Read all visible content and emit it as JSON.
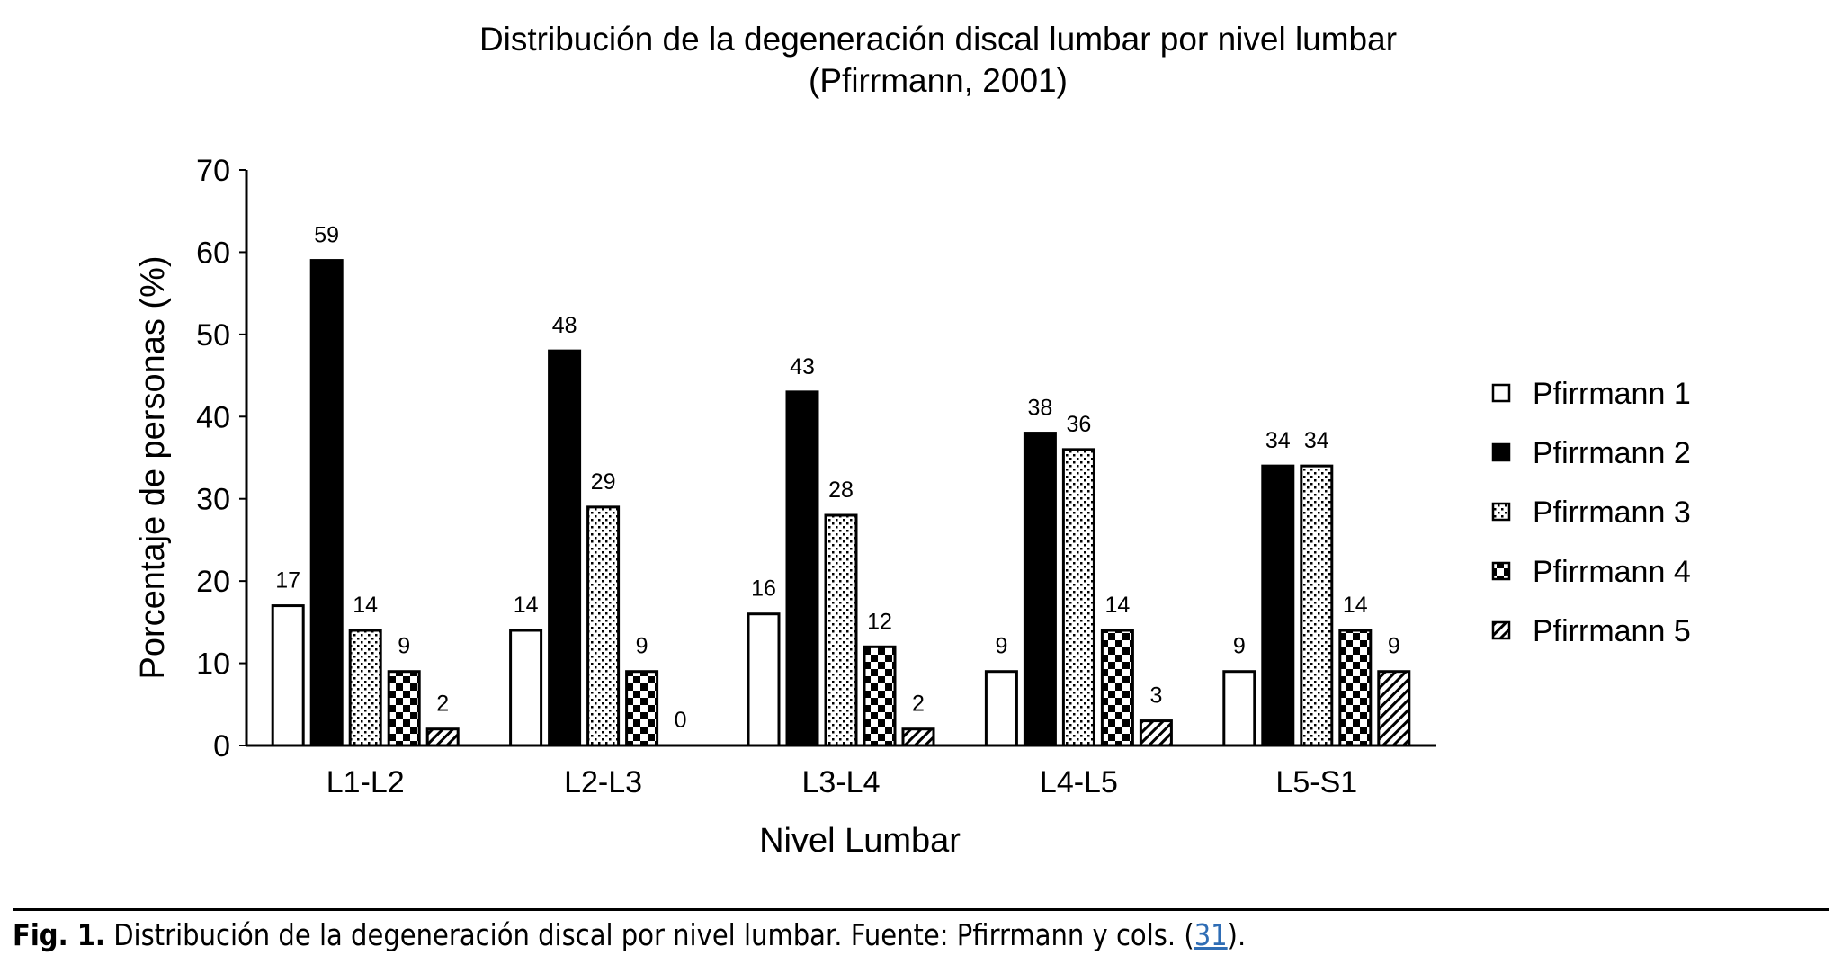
{
  "chart_data": {
    "type": "bar",
    "title": "Distribución de la degeneración discal lumbar por nivel lumbar",
    "subtitle": "(Pfirrmann, 2001)",
    "xlabel": "Nivel Lumbar",
    "ylabel": "Porcentaje de personas (%)",
    "ylim": [
      0,
      70
    ],
    "yticks": [
      0,
      10,
      20,
      30,
      40,
      50,
      60,
      70
    ],
    "grid": false,
    "legend_position": "right",
    "categories": [
      "L1-L2",
      "L2-L3",
      "L3-L4",
      "L4-L5",
      "L5-S1"
    ],
    "series": [
      {
        "name": "Pfirrmann 1",
        "pattern": "white",
        "values": [
          17,
          14,
          16,
          9,
          9
        ]
      },
      {
        "name": "Pfirrmann 2",
        "pattern": "black",
        "values": [
          59,
          48,
          43,
          38,
          34
        ]
      },
      {
        "name": "Pfirrmann 3",
        "pattern": "dots",
        "values": [
          14,
          29,
          28,
          36,
          34
        ]
      },
      {
        "name": "Pfirrmann 4",
        "pattern": "checker",
        "values": [
          9,
          9,
          12,
          14,
          14
        ]
      },
      {
        "name": "Pfirrmann 5",
        "pattern": "diagonal-hatch",
        "values": [
          2,
          0,
          2,
          3,
          9
        ]
      }
    ]
  },
  "caption": {
    "label": "Fig. 1.",
    "text": " Distribución de la degeneración discal por nivel lumbar. Fuente: Pfirrmann y cols. (",
    "ref": "31",
    "end": ")."
  }
}
